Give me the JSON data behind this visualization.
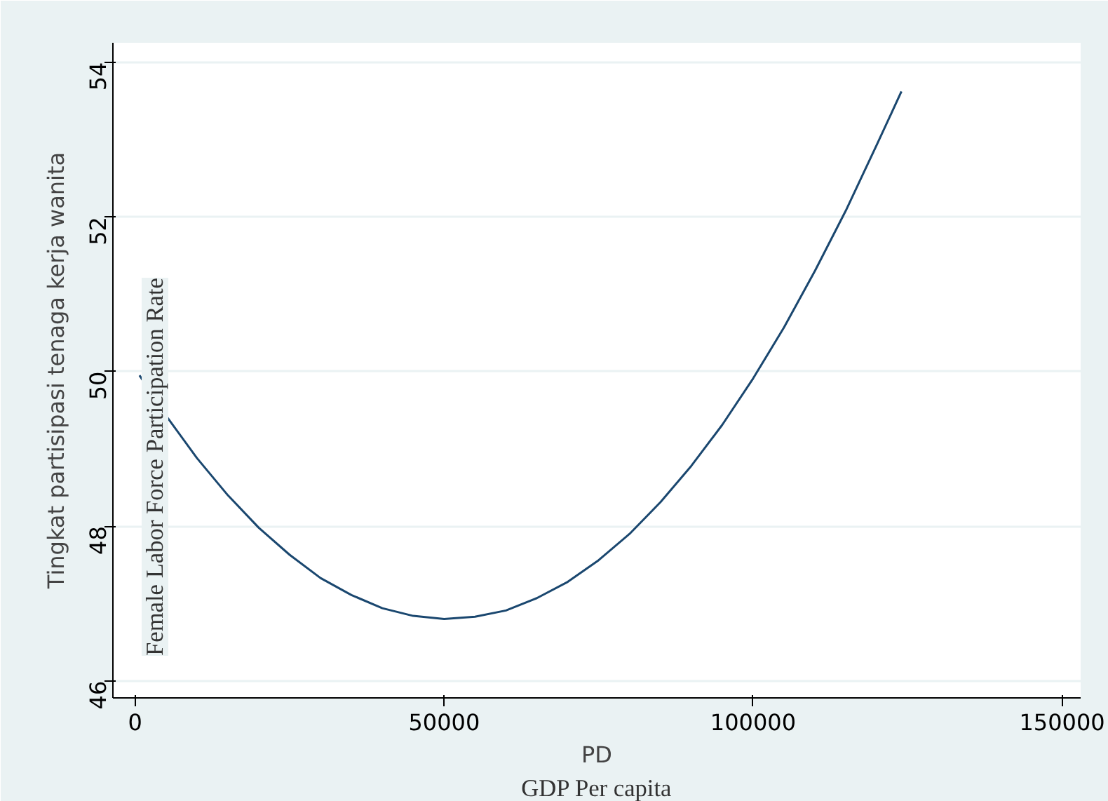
{
  "chart_data": {
    "type": "line",
    "xlabel": "PD",
    "ylabel": "Tingkat partisipasi tenaga kerja wanita",
    "x": [
      700,
      5000,
      10000,
      15000,
      20000,
      25000,
      30000,
      35000,
      40000,
      45000,
      50000,
      55000,
      60000,
      65000,
      70000,
      75000,
      80000,
      85000,
      90000,
      95000,
      100000,
      105000,
      110000,
      115000,
      120000,
      124000
    ],
    "series": [
      {
        "color": "#1a476f",
        "values": [
          49.95,
          49.43,
          48.88,
          48.4,
          47.98,
          47.63,
          47.33,
          47.11,
          46.94,
          46.84,
          46.8,
          46.83,
          46.91,
          47.07,
          47.28,
          47.56,
          47.9,
          48.31,
          48.78,
          49.31,
          49.91,
          50.57,
          51.3,
          52.08,
          52.93,
          53.62
        ]
      }
    ],
    "xlim": [
      -3600,
      153000
    ],
    "ylim": [
      45.78,
      54.25
    ],
    "xticks": [
      0,
      50000,
      100000,
      150000
    ],
    "yticks": [
      46,
      48,
      50,
      52,
      54
    ],
    "grid": "y",
    "marker": "none",
    "line_style": "solid",
    "annotations": [
      "Female Labor Force Participation Rate",
      "GDP Per capita"
    ]
  }
}
